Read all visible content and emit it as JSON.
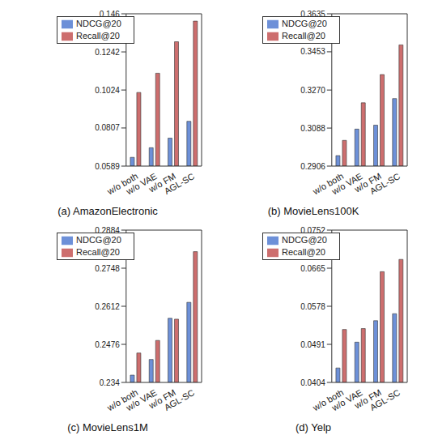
{
  "chart_data": [
    {
      "type": "bar",
      "title": "(a) AmazonElectronic",
      "categories": [
        "w/o both",
        "w/o VAE",
        "w/o FM",
        "AGL-SC"
      ],
      "series": [
        {
          "name": "NDCG@20",
          "color": "#6d90d8",
          "values": [
            0.0639,
            0.0694,
            0.0749,
            0.0845
          ]
        },
        {
          "name": "Recall@20",
          "color": "#cd6e6e",
          "values": [
            0.101,
            0.112,
            0.13,
            0.1418
          ]
        }
      ],
      "ylim": [
        0.0589,
        0.146
      ],
      "yticks": [
        0.0589,
        0.0807,
        0.1024,
        0.1242,
        0.146
      ],
      "legend": "upper left"
    },
    {
      "type": "bar",
      "title": "(b) MovieLens100K",
      "categories": [
        "w/o both",
        "w/o VAE",
        "w/o FM",
        "AGL-SC"
      ],
      "series": [
        {
          "name": "NDCG@20",
          "color": "#6d90d8",
          "values": [
            0.2956,
            0.3083,
            0.3102,
            0.3229
          ]
        },
        {
          "name": "Recall@20",
          "color": "#cd6e6e",
          "values": [
            0.3029,
            0.3209,
            0.3344,
            0.3486
          ]
        }
      ],
      "ylim": [
        0.2906,
        0.3635
      ],
      "yticks": [
        0.2906,
        0.3088,
        {
          "value": 0.327,
          "label": "0.3270"
        },
        0.3453,
        0.3635
      ],
      "legend": "upper left"
    },
    {
      "type": "bar",
      "title": "(c) MovieLens1M",
      "categories": [
        "w/o both",
        "w/o VAE",
        "w/o FM",
        "AGL-SC"
      ],
      "series": [
        {
          "name": "NDCG@20",
          "color": "#6d90d8",
          "values": [
            0.2366,
            0.2422,
            0.2569,
            0.2626
          ]
        },
        {
          "name": "Recall@20",
          "color": "#cd6e6e",
          "values": [
            0.2445,
            0.249,
            0.2566,
            0.2807
          ]
        }
      ],
      "ylim": [
        0.234,
        0.2884
      ],
      "yticks": [
        0.234,
        0.2476,
        0.2612,
        0.2748,
        0.2884
      ],
      "legend": "upper left"
    },
    {
      "type": "bar",
      "title": "(d) Yelp",
      "categories": [
        "w/o both",
        "w/o VAE",
        "w/o FM",
        "AGL-SC"
      ],
      "series": [
        {
          "name": "NDCG@20",
          "color": "#6d90d8",
          "values": [
            0.0437,
            0.0496,
            0.0545,
            0.0561
          ]
        },
        {
          "name": "Recall@20",
          "color": "#cd6e6e",
          "values": [
            0.0525,
            0.0527,
            0.0657,
            0.0685
          ]
        }
      ],
      "ylim": [
        0.0404,
        0.0752
      ],
      "yticks": [
        0.0404,
        0.0491,
        0.0578,
        0.0665,
        0.0752
      ],
      "legend": "upper left"
    }
  ]
}
